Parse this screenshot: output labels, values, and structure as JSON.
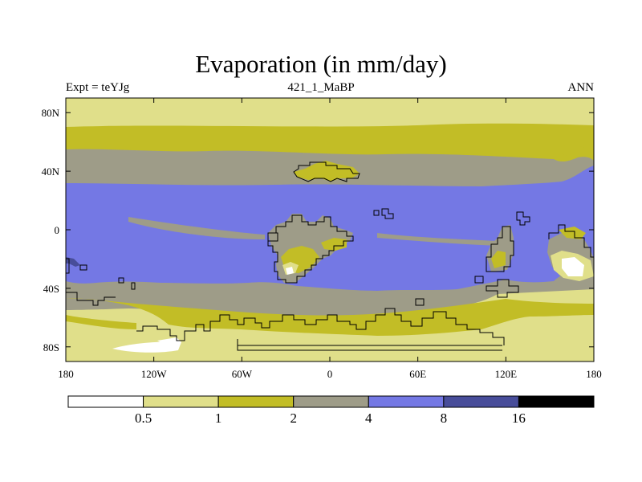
{
  "title": "Evaporation (in mm/day)",
  "subtitle_left": "Expt = teYJg",
  "subtitle_center": "421_1_MaBP",
  "subtitle_right": "ANN",
  "map": {
    "lon_range": [
      -180,
      180
    ],
    "lat_range": [
      -90,
      90
    ],
    "x_ticks": [
      {
        "value": -180,
        "label": "180"
      },
      {
        "value": -120,
        "label": "120W"
      },
      {
        "value": -60,
        "label": "60W"
      },
      {
        "value": 0,
        "label": "0"
      },
      {
        "value": 60,
        "label": "60E"
      },
      {
        "value": 120,
        "label": "120E"
      },
      {
        "value": 180,
        "label": "180"
      }
    ],
    "y_ticks": [
      {
        "value": 80,
        "label": "80N"
      },
      {
        "value": 40,
        "label": "40N"
      },
      {
        "value": 0,
        "label": "0"
      },
      {
        "value": -40,
        "label": "40S"
      },
      {
        "value": -80,
        "label": "80S"
      }
    ]
  },
  "colorbar": {
    "colors": [
      "#ffffff",
      "#e0df8a",
      "#c2bd26",
      "#9e9c88",
      "#7478e4",
      "#484d9a",
      "#000000"
    ],
    "labels": [
      "0.5",
      "1",
      "2",
      "4",
      "8",
      "16"
    ]
  }
}
